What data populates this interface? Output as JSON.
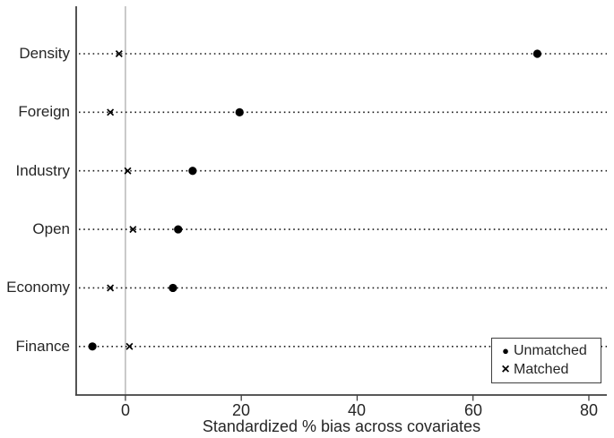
{
  "chart_data": {
    "type": "scatter",
    "subtype": "horizontal-dot-plot",
    "title": "",
    "xlabel": "Standardized % bias across covariates",
    "ylabel": "",
    "categories": [
      "Density",
      "Foreign",
      "Industry",
      "Open",
      "Economy",
      "Finance"
    ],
    "series": [
      {
        "name": "Unmatched",
        "marker": "circle",
        "values": [
          71.1,
          19.7,
          11.6,
          9.1,
          8.2,
          -5.7
        ]
      },
      {
        "name": "Matched",
        "marker": "x",
        "values": [
          -1.1,
          -2.6,
          0.4,
          1.3,
          -2.6,
          0.7
        ]
      }
    ],
    "x_ticks": [
      0,
      20,
      40,
      60,
      80
    ],
    "xlim": [
      -8.5,
      83.1
    ],
    "zero_reference_line": true,
    "grid": "dotted-horizontal-per-category",
    "legend_position": "bottom-right",
    "colors": {
      "marker": "#000000",
      "axis": "#404040",
      "zero_line": "#a6a6a6",
      "grid_dots": "#1a1a1a",
      "text": "#262626",
      "background": "#ffffff"
    }
  }
}
